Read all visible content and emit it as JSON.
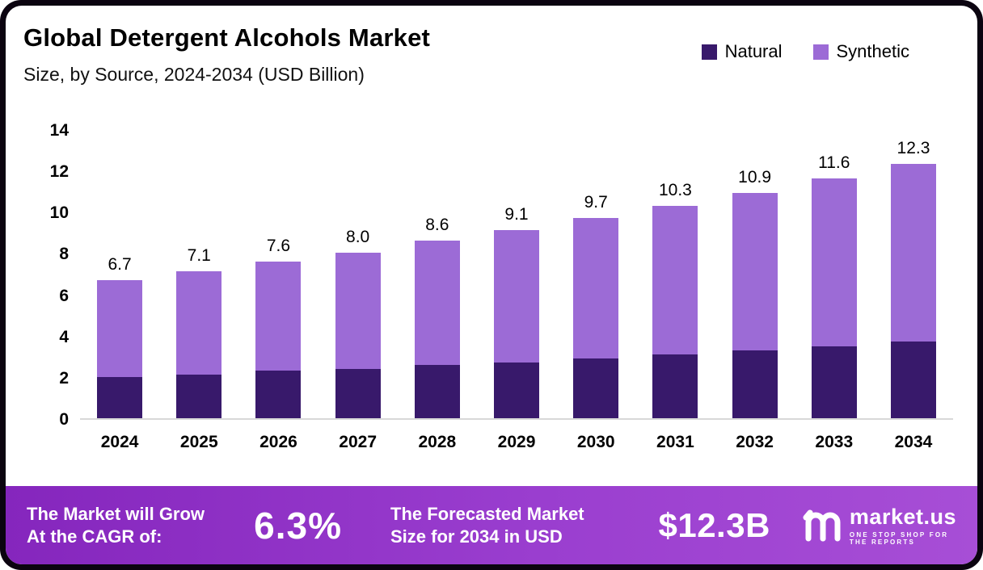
{
  "header": {
    "title": "Global Detergent Alcohols Market",
    "subtitle": "Size, by Source, 2024-2034 (USD Billion)"
  },
  "legend": {
    "items": [
      {
        "label": "Natural",
        "color": "#38196b"
      },
      {
        "label": "Synthetic",
        "color": "#9c6bd6"
      }
    ]
  },
  "chart_data": {
    "type": "bar",
    "stacked": true,
    "title": "Global Detergent Alcohols Market Size, by Source, 2024-2034 (USD Billion)",
    "categories": [
      "2024",
      "2025",
      "2026",
      "2027",
      "2028",
      "2029",
      "2030",
      "2031",
      "2032",
      "2033",
      "2034"
    ],
    "series": [
      {
        "name": "Natural",
        "color": "#38196b",
        "values": [
          2.0,
          2.1,
          2.3,
          2.4,
          2.6,
          2.7,
          2.9,
          3.1,
          3.3,
          3.5,
          3.7
        ]
      },
      {
        "name": "Synthetic",
        "color": "#9c6bd6",
        "values": [
          4.7,
          5.0,
          5.3,
          5.6,
          6.0,
          6.4,
          6.8,
          7.2,
          7.6,
          8.1,
          8.6
        ]
      }
    ],
    "totals": [
      "6.7",
      "7.1",
      "7.6",
      "8.0",
      "8.6",
      "9.1",
      "9.7",
      "10.3",
      "10.9",
      "11.6",
      "12.3"
    ],
    "ylim": [
      0,
      14
    ],
    "yticks": [
      0,
      2,
      4,
      6,
      8,
      10,
      12,
      14
    ],
    "grid": false,
    "legend_position": "top-right"
  },
  "footer": {
    "cagr_label": "The Market will Grow At the CAGR of:",
    "cagr_value": "6.3%",
    "forecast_label": "The Forecasted Market Size for 2034 in USD",
    "forecast_value": "$12.3B",
    "brand": {
      "name": "market.us",
      "tagline": "ONE STOP SHOP FOR THE REPORTS"
    }
  }
}
